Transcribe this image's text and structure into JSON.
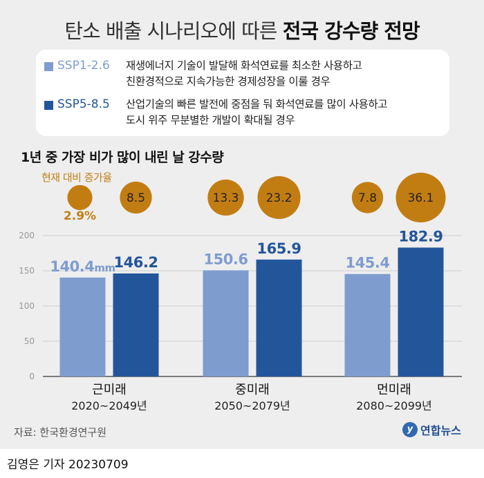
{
  "title": {
    "prefix": "탄소 배출 시나리오에 따른",
    "bold": "전국 강수량 전망"
  },
  "legend": [
    {
      "name": "SSP1-2.6",
      "color": "#7f9ccf",
      "description": "재생에너지 기술이 발달해 화석연료를 최소한 사용하고\n친환경적으로 지속가능한 경제성장을 이룰 경우"
    },
    {
      "name": "SSP5-8.5",
      "color": "#23559b",
      "description": "산업기술의 빠른 발전에 중점을 둬 화석연료를 많이 사용하고\n도시 위주 무분별한 개발이 확대될 경우"
    }
  ],
  "subtitle": "1년 중 가장 비가 많이 내린 날 강수량",
  "rate_caption": "현재 대비 증가율",
  "rate_color": "#c27d12",
  "unit": "mm",
  "chart_data": {
    "type": "bar",
    "categories": [
      "근미래",
      "중미래",
      "먼미래"
    ],
    "category_periods": [
      "2020~2049년",
      "2050~2079년",
      "2080~2099년"
    ],
    "series": [
      {
        "name": "SSP1-2.6",
        "values": [
          140.4,
          150.6,
          145.4
        ],
        "increase_rates": [
          2.9,
          13.3,
          7.8
        ]
      },
      {
        "name": "SSP5-8.5",
        "values": [
          146.2,
          165.9,
          182.9
        ],
        "increase_rates": [
          8.5,
          23.2,
          36.1
        ]
      }
    ],
    "rate_labels": [
      [
        "2.9%",
        "8.5"
      ],
      [
        "13.3",
        "23.2"
      ],
      [
        "7.8",
        "36.1"
      ]
    ],
    "yticks": [
      0,
      50,
      100,
      150,
      200
    ],
    "ylim": [
      0,
      200
    ],
    "grid": true
  },
  "source": "자료: 한국환경연구원",
  "logo": {
    "mark": "y",
    "text": "연합뉴스"
  },
  "byline": "김영은 기자  20230709"
}
